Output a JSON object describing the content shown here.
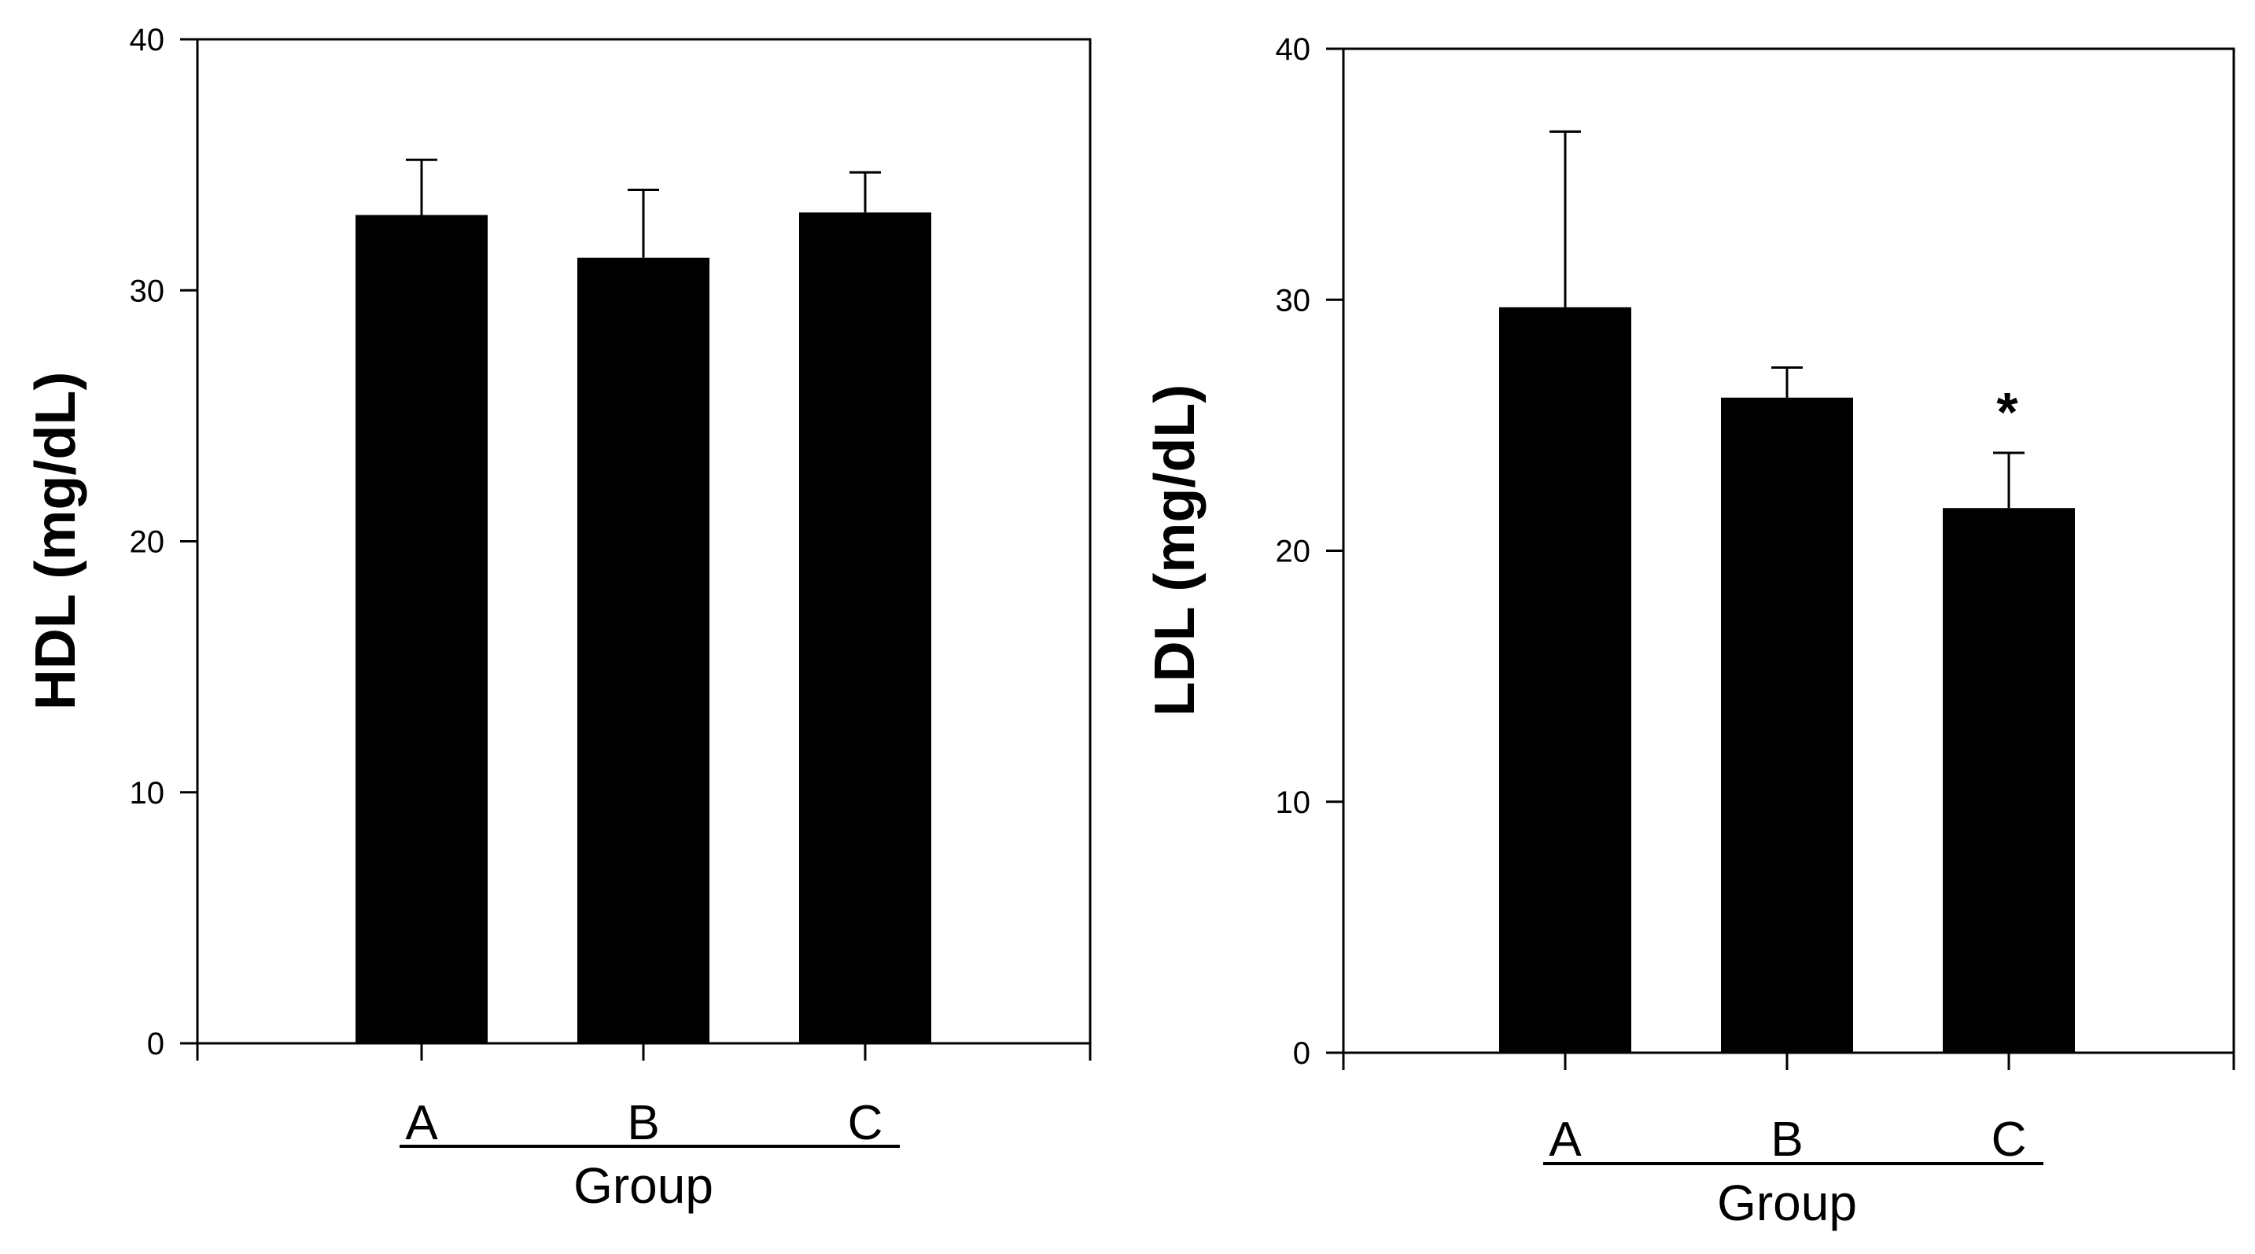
{
  "chart_data": [
    {
      "type": "bar",
      "categories": [
        "A",
        "B",
        "C"
      ],
      "values": [
        33.0,
        31.3,
        33.1
      ],
      "errors": [
        2.2,
        2.7,
        1.6
      ],
      "xlabel": "Group",
      "ylabel": "HDL (mg/dL)",
      "ylim": [
        0,
        40
      ],
      "yticks": [
        "0",
        "10",
        "20",
        "30",
        "40"
      ],
      "annotations": [
        "",
        "",
        ""
      ],
      "bar_color": "#000000",
      "grid": false,
      "legend": "none"
    },
    {
      "type": "bar",
      "categories": [
        "A",
        "B",
        "C"
      ],
      "values": [
        29.7,
        26.1,
        21.7
      ],
      "errors": [
        7.0,
        1.2,
        2.2
      ],
      "xlabel": "Group",
      "ylabel": "LDL (mg/dL)",
      "ylim": [
        0,
        40
      ],
      "yticks": [
        "0",
        "10",
        "20",
        "30",
        "40"
      ],
      "annotations": [
        "",
        "",
        "*"
      ],
      "bar_color": "#000000",
      "grid": false,
      "legend": "none"
    }
  ]
}
